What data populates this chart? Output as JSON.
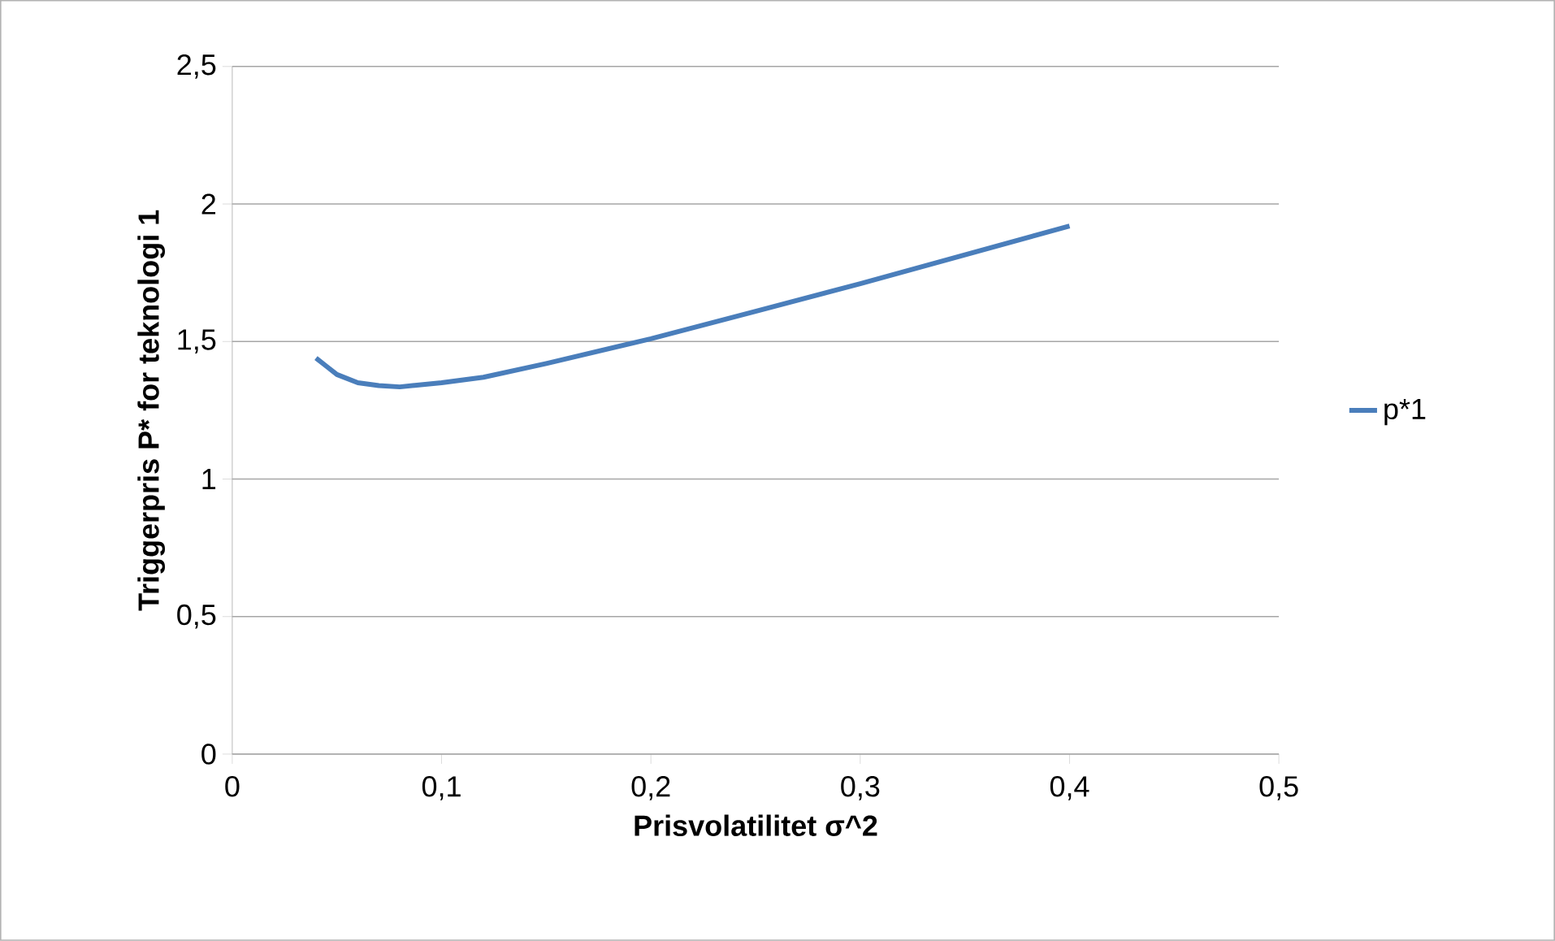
{
  "chart_data": {
    "type": "line",
    "xlabel": "Prisvolatilitet σ^2",
    "ylabel": "Triggerpris P* for teknologi 1",
    "series": [
      {
        "name": "p*1",
        "color": "#4a7ebb",
        "x": [
          0.04,
          0.045,
          0.05,
          0.06,
          0.07,
          0.08,
          0.1,
          0.12,
          0.15,
          0.2,
          0.25,
          0.3,
          0.35,
          0.4
        ],
        "values": [
          1.44,
          1.41,
          1.38,
          1.35,
          1.34,
          1.335,
          1.35,
          1.37,
          1.42,
          1.51,
          1.61,
          1.71,
          1.815,
          1.92
        ]
      }
    ],
    "xlim": [
      0,
      0.5
    ],
    "ylim": [
      0,
      2.5
    ],
    "xticks": [
      0,
      {
        "value": 0.1,
        "label": "0,1"
      },
      {
        "value": 0.2,
        "label": "0,2"
      },
      {
        "value": 0.3,
        "label": "0,3"
      },
      {
        "value": 0.4,
        "label": "0,4"
      },
      {
        "value": 0.5,
        "label": "0,5"
      }
    ],
    "yticks": [
      0,
      {
        "value": 0.5,
        "label": "0,5"
      },
      1,
      {
        "value": 1.5,
        "label": "1,5"
      },
      2,
      {
        "value": 2.5,
        "label": "2,5"
      }
    ],
    "grid": "y",
    "legend": "right",
    "marker": "none",
    "line_style": "solid"
  }
}
